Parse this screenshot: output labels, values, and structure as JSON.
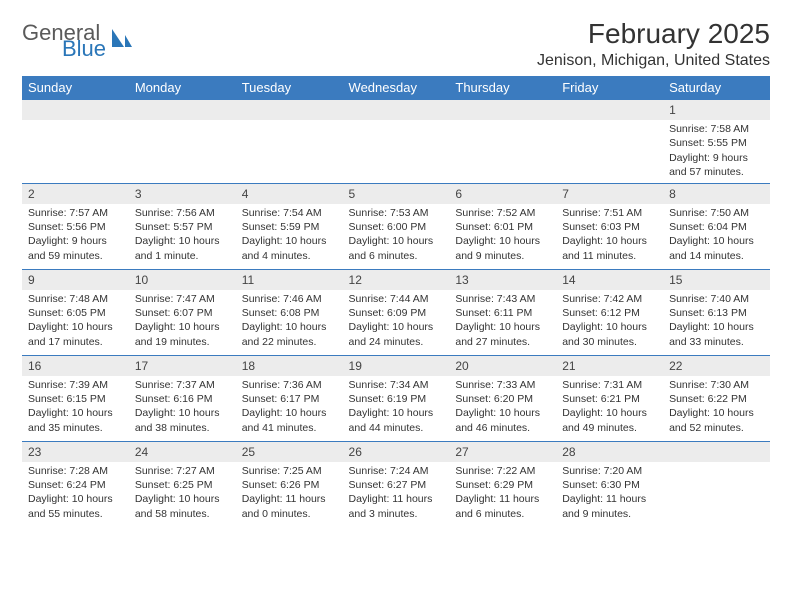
{
  "brand": {
    "part1": "General",
    "part2": "Blue"
  },
  "title": "February 2025",
  "location": "Jenison, Michigan, United States",
  "colors": {
    "header_blue": "#3b7bbf",
    "daynum_bg": "#ececec",
    "text": "#333333",
    "logo_blue": "#2a76b8"
  },
  "weekdays": [
    "Sunday",
    "Monday",
    "Tuesday",
    "Wednesday",
    "Thursday",
    "Friday",
    "Saturday"
  ],
  "weeks": [
    [
      null,
      null,
      null,
      null,
      null,
      null,
      {
        "n": "1",
        "sr": "7:58 AM",
        "ss": "5:55 PM",
        "dl": "9 hours and 57 minutes."
      }
    ],
    [
      {
        "n": "2",
        "sr": "7:57 AM",
        "ss": "5:56 PM",
        "dl": "9 hours and 59 minutes."
      },
      {
        "n": "3",
        "sr": "7:56 AM",
        "ss": "5:57 PM",
        "dl": "10 hours and 1 minute."
      },
      {
        "n": "4",
        "sr": "7:54 AM",
        "ss": "5:59 PM",
        "dl": "10 hours and 4 minutes."
      },
      {
        "n": "5",
        "sr": "7:53 AM",
        "ss": "6:00 PM",
        "dl": "10 hours and 6 minutes."
      },
      {
        "n": "6",
        "sr": "7:52 AM",
        "ss": "6:01 PM",
        "dl": "10 hours and 9 minutes."
      },
      {
        "n": "7",
        "sr": "7:51 AM",
        "ss": "6:03 PM",
        "dl": "10 hours and 11 minutes."
      },
      {
        "n": "8",
        "sr": "7:50 AM",
        "ss": "6:04 PM",
        "dl": "10 hours and 14 minutes."
      }
    ],
    [
      {
        "n": "9",
        "sr": "7:48 AM",
        "ss": "6:05 PM",
        "dl": "10 hours and 17 minutes."
      },
      {
        "n": "10",
        "sr": "7:47 AM",
        "ss": "6:07 PM",
        "dl": "10 hours and 19 minutes."
      },
      {
        "n": "11",
        "sr": "7:46 AM",
        "ss": "6:08 PM",
        "dl": "10 hours and 22 minutes."
      },
      {
        "n": "12",
        "sr": "7:44 AM",
        "ss": "6:09 PM",
        "dl": "10 hours and 24 minutes."
      },
      {
        "n": "13",
        "sr": "7:43 AM",
        "ss": "6:11 PM",
        "dl": "10 hours and 27 minutes."
      },
      {
        "n": "14",
        "sr": "7:42 AM",
        "ss": "6:12 PM",
        "dl": "10 hours and 30 minutes."
      },
      {
        "n": "15",
        "sr": "7:40 AM",
        "ss": "6:13 PM",
        "dl": "10 hours and 33 minutes."
      }
    ],
    [
      {
        "n": "16",
        "sr": "7:39 AM",
        "ss": "6:15 PM",
        "dl": "10 hours and 35 minutes."
      },
      {
        "n": "17",
        "sr": "7:37 AM",
        "ss": "6:16 PM",
        "dl": "10 hours and 38 minutes."
      },
      {
        "n": "18",
        "sr": "7:36 AM",
        "ss": "6:17 PM",
        "dl": "10 hours and 41 minutes."
      },
      {
        "n": "19",
        "sr": "7:34 AM",
        "ss": "6:19 PM",
        "dl": "10 hours and 44 minutes."
      },
      {
        "n": "20",
        "sr": "7:33 AM",
        "ss": "6:20 PM",
        "dl": "10 hours and 46 minutes."
      },
      {
        "n": "21",
        "sr": "7:31 AM",
        "ss": "6:21 PM",
        "dl": "10 hours and 49 minutes."
      },
      {
        "n": "22",
        "sr": "7:30 AM",
        "ss": "6:22 PM",
        "dl": "10 hours and 52 minutes."
      }
    ],
    [
      {
        "n": "23",
        "sr": "7:28 AM",
        "ss": "6:24 PM",
        "dl": "10 hours and 55 minutes."
      },
      {
        "n": "24",
        "sr": "7:27 AM",
        "ss": "6:25 PM",
        "dl": "10 hours and 58 minutes."
      },
      {
        "n": "25",
        "sr": "7:25 AM",
        "ss": "6:26 PM",
        "dl": "11 hours and 0 minutes."
      },
      {
        "n": "26",
        "sr": "7:24 AM",
        "ss": "6:27 PM",
        "dl": "11 hours and 3 minutes."
      },
      {
        "n": "27",
        "sr": "7:22 AM",
        "ss": "6:29 PM",
        "dl": "11 hours and 6 minutes."
      },
      {
        "n": "28",
        "sr": "7:20 AM",
        "ss": "6:30 PM",
        "dl": "11 hours and 9 minutes."
      },
      null
    ]
  ],
  "labels": {
    "sunrise": "Sunrise:",
    "sunset": "Sunset:",
    "daylight": "Daylight:"
  }
}
